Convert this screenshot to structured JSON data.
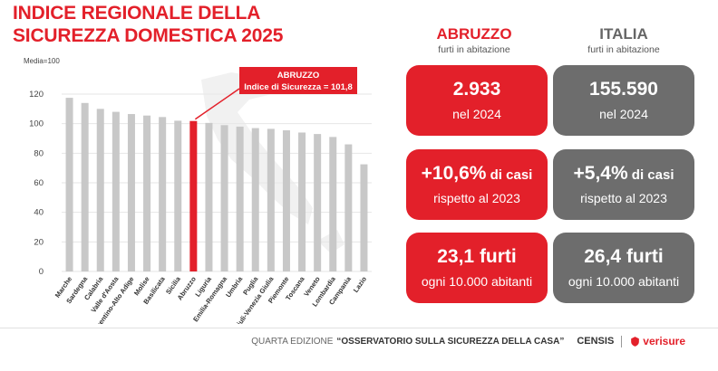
{
  "title": {
    "line1": "INDICE REGIONALE DELLA",
    "line2": "SICUREZZA DOMESTICA 2025"
  },
  "chart_data": {
    "type": "bar",
    "ylabel": "Media=100",
    "ylim": [
      0,
      120
    ],
    "yticks": [
      0,
      20,
      40,
      60,
      80,
      100,
      120
    ],
    "grid": true,
    "categories": [
      "Marche",
      "Sardegna",
      "Calabria",
      "Valle d'Aosta",
      "Trentino-Alto Adige",
      "Molise",
      "Basilicata",
      "Sicilia",
      "Abruzzo",
      "Liguria",
      "Emilia-Romagna",
      "Umbria",
      "Puglia",
      "Friuli-Venezia Giulia",
      "Piemonte",
      "Toscana",
      "Veneto",
      "Lombardia",
      "Campania",
      "Lazio"
    ],
    "values": [
      117.5,
      114,
      110,
      108,
      106.5,
      105.5,
      104.5,
      102,
      101.8,
      100.5,
      99,
      98,
      97,
      96.5,
      95.5,
      94,
      93,
      91,
      86,
      72.5
    ],
    "highlight": "Abruzzo",
    "annotation": {
      "line1": "ABRUZZO",
      "line2": "Indice di Sicurezza = 101,8"
    },
    "colors": {
      "bar": "#c8c8c8",
      "highlight": "#e3202a"
    }
  },
  "columns": {
    "abruzzo": {
      "title": "ABRUZZO",
      "subtitle": "furti in abitazione"
    },
    "italia": {
      "title": "ITALIA",
      "subtitle": "furti in abitazione"
    }
  },
  "cards": {
    "abruzzo": [
      {
        "big": "2.933",
        "suffix": "",
        "sub": "nel 2024"
      },
      {
        "big": "+10,6%",
        "suffix": " di casi",
        "sub": "rispetto al 2023"
      },
      {
        "big": "23,1 furti",
        "suffix": "",
        "sub": "ogni 10.000 abitanti"
      }
    ],
    "italia": [
      {
        "big": "155.590",
        "suffix": "",
        "sub": "nel 2024"
      },
      {
        "big": "+5,4%",
        "suffix": " di casi",
        "sub": "rispetto al 2023"
      },
      {
        "big": "26,4 furti",
        "suffix": "",
        "sub": "ogni 10.000 abitanti"
      }
    ]
  },
  "footer": {
    "prefix": "QUARTA EDIZIONE",
    "title": "“OSSERVATORIO SULLA SICUREZZA DELLA CASA”",
    "brand1": "CENSIS",
    "brand2": "verisure"
  },
  "colors": {
    "red": "#e3202a",
    "grey": "#6d6d6d"
  }
}
